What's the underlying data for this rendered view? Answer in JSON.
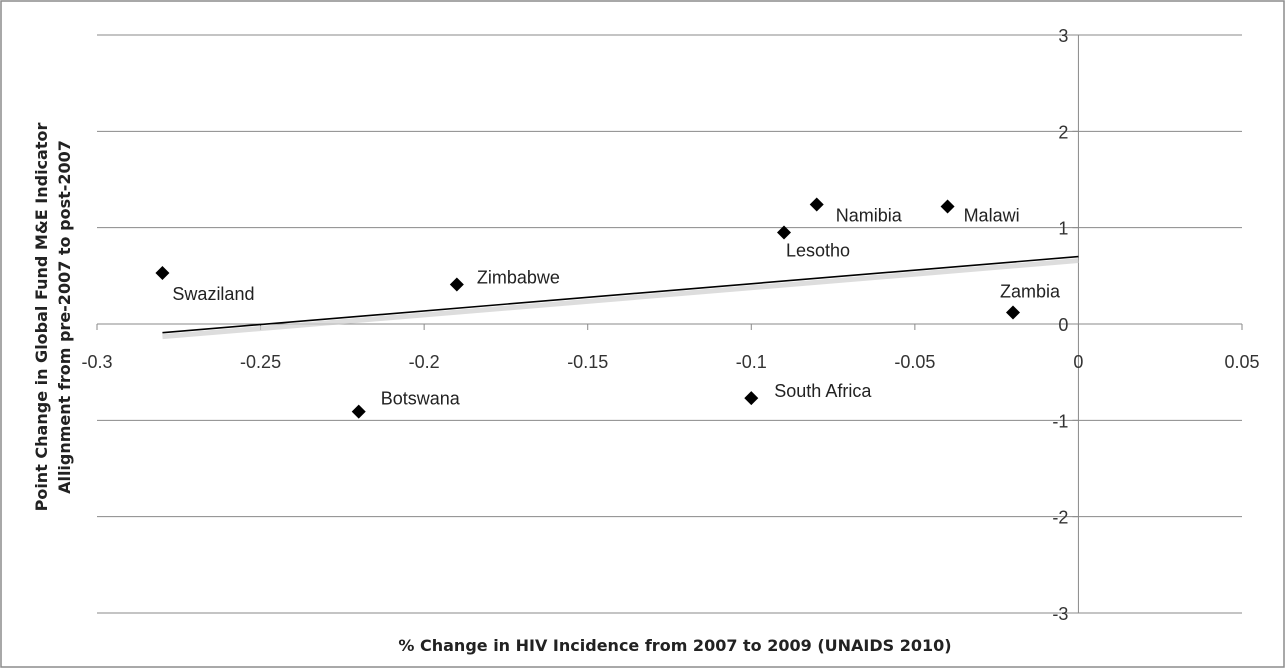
{
  "chart_data": {
    "type": "scatter",
    "title": "",
    "xlabel": "% Change in HIV Incidence from 2007 to 2009 (UNAIDS 2010)",
    "ylabel_lines": [
      "Point Change in Global Fund M&E Indicator",
      "Allignment from pre-2007 to post-2007"
    ],
    "xlim": [
      -0.3,
      0.05
    ],
    "ylim": [
      -3,
      3
    ],
    "x_ticks": [
      -0.3,
      -0.25,
      -0.2,
      -0.15,
      -0.1,
      -0.05,
      0,
      0.05
    ],
    "x_tick_labels": [
      "-0.3",
      "-0.25",
      "-0.2",
      "-0.15",
      "-0.1",
      "-0.05",
      "0",
      "0.05"
    ],
    "y_ticks": [
      3,
      2,
      1,
      0,
      -1,
      -2,
      -3
    ],
    "y_tick_labels": [
      "3",
      "2",
      "1",
      "0",
      "-1",
      "-2",
      "-3"
    ],
    "grid": "horizontal",
    "legend": "none",
    "marker_color": "#000000",
    "points": [
      {
        "label": "Swaziland",
        "x": -0.28,
        "y": 0.53
      },
      {
        "label": "Zimbabwe",
        "x": -0.19,
        "y": 0.41
      },
      {
        "label": "Botswana",
        "x": -0.22,
        "y": -0.91
      },
      {
        "label": "Lesotho",
        "x": -0.09,
        "y": 0.95
      },
      {
        "label": "Namibia",
        "x": -0.08,
        "y": 1.24
      },
      {
        "label": "Malawi",
        "x": -0.04,
        "y": 1.22
      },
      {
        "label": "Zambia",
        "x": -0.02,
        "y": 0.12
      },
      {
        "label": "South Africa",
        "x": -0.1,
        "y": -0.77
      }
    ],
    "trendline": {
      "x": [
        -0.28,
        0
      ],
      "y": [
        -0.09,
        0.7
      ]
    }
  }
}
